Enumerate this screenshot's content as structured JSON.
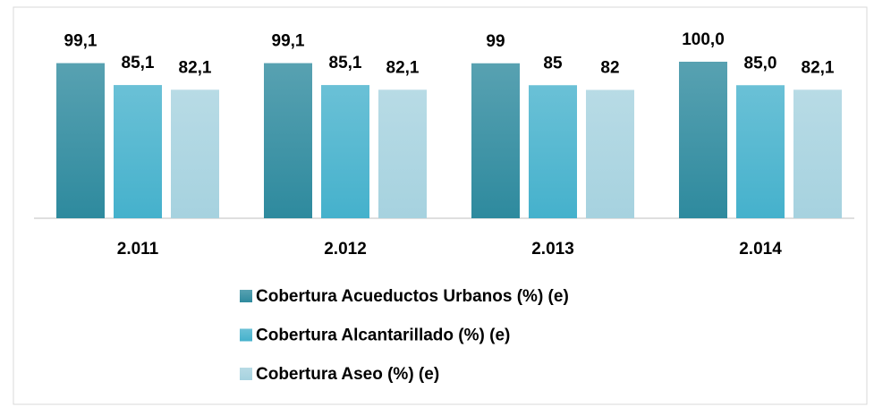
{
  "chart_data": {
    "type": "bar",
    "categories": [
      "2.011",
      "2.012",
      "2.013",
      "2.014"
    ],
    "series": [
      {
        "name": "Cobertura Acueductos Urbanos (%) (e)",
        "color": "#2e8a9e",
        "values": [
          99.1,
          99.1,
          99,
          100
        ],
        "value_labels": [
          "99,1",
          "99,1",
          "99",
          "100,0"
        ]
      },
      {
        "name": "Cobertura Alcantarillado (%) (e)",
        "color": "#45b1cc",
        "values": [
          85.1,
          85.1,
          85,
          85
        ],
        "value_labels": [
          "85,1",
          "85,1",
          "85",
          "85,0"
        ]
      },
      {
        "name": "Cobertura Aseo (%) (e)",
        "color": "#a6d2df",
        "values": [
          82.1,
          82.1,
          82,
          82.1
        ],
        "value_labels": [
          "82,1",
          "82,1",
          "82",
          "82,1"
        ]
      }
    ],
    "ylim": [
      0,
      100
    ]
  }
}
